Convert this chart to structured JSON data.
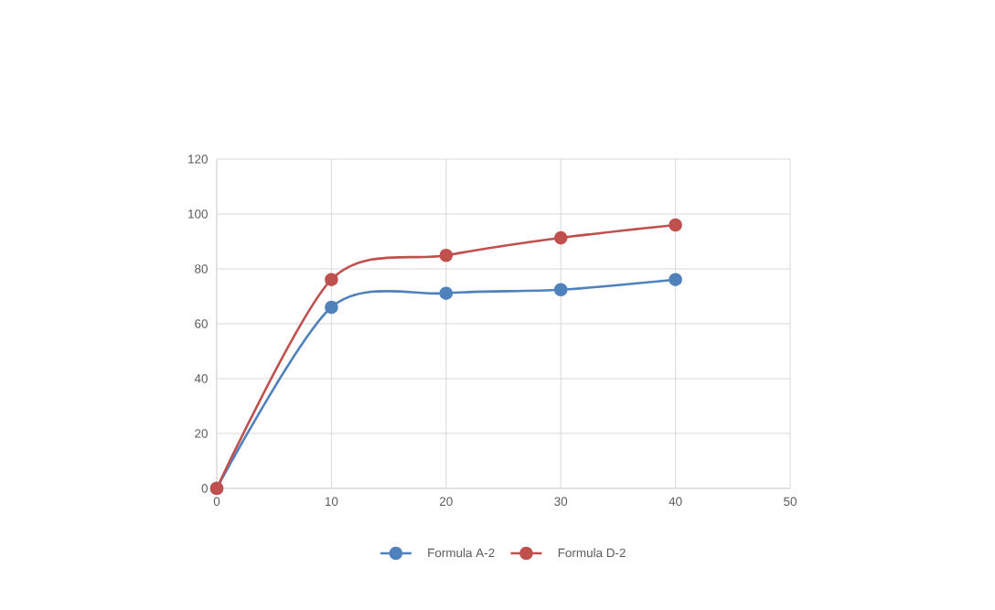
{
  "chart_data": {
    "type": "line",
    "x": [
      0,
      10,
      20,
      30,
      40
    ],
    "series": [
      {
        "name": "Formula A-2",
        "color": "#4f81bd",
        "values": [
          0,
          66,
          71.1,
          72.4,
          76.1
        ]
      },
      {
        "name": "Formula D-2",
        "color": "#c0504d",
        "values": [
          0,
          76.1,
          84.9,
          91.3,
          96
        ]
      }
    ],
    "xlim": [
      0,
      50
    ],
    "xticks": [
      0,
      10,
      20,
      30,
      40,
      50
    ],
    "ylim": [
      0,
      120
    ],
    "yticks": [
      0,
      20,
      40,
      60,
      80,
      100,
      120
    ],
    "grid": true,
    "legend": "bottom",
    "marker": "circle",
    "line_style": "solid"
  }
}
